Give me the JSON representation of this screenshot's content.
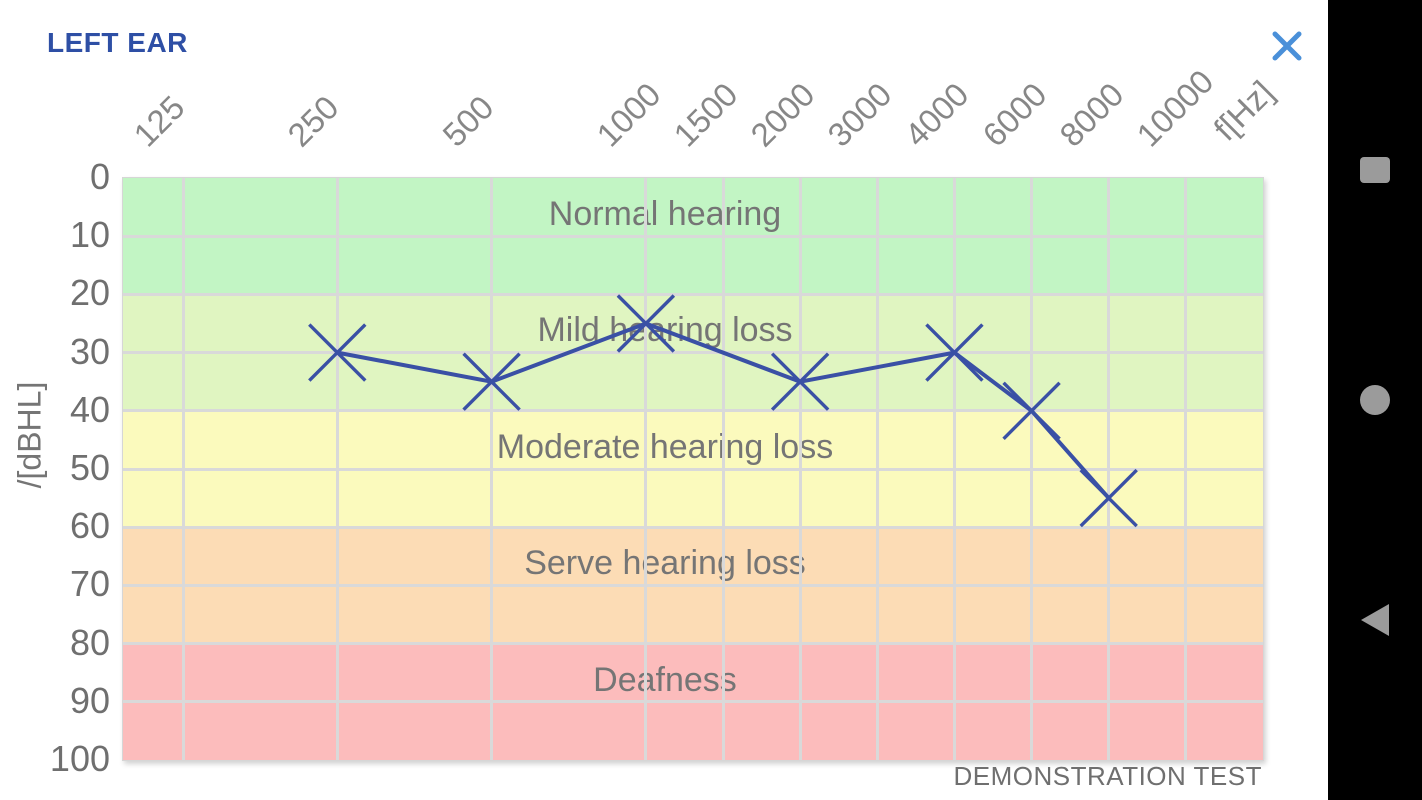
{
  "app": {
    "title": "LEFT EAR",
    "title_color": "#2e4fa5",
    "close_color": "#4a90d9"
  },
  "chart_data": {
    "type": "line",
    "title": "LEFT EAR",
    "x_axis_label": "f[Hz]",
    "y_axis_label": "/[dBHL]",
    "x_ticks": [
      "125",
      "250",
      "500",
      "1000",
      "1500",
      "2000",
      "3000",
      "4000",
      "6000",
      "8000",
      "10000"
    ],
    "y_ticks": [
      "0",
      "10",
      "20",
      "30",
      "40",
      "50",
      "60",
      "70",
      "80",
      "90",
      "100"
    ],
    "y_range": [
      0,
      100
    ],
    "y_axis_inverted_dbhl": true,
    "grid": true,
    "legend": "none",
    "series": [
      {
        "name": "left-ear-threshold",
        "color": "#3a50a5",
        "marker": "x",
        "points": [
          {
            "freq": 250,
            "db": 30
          },
          {
            "freq": 500,
            "db": 35
          },
          {
            "freq": 1000,
            "db": 25
          },
          {
            "freq": 2000,
            "db": 35
          },
          {
            "freq": 4000,
            "db": 30
          },
          {
            "freq": 6000,
            "db": 40
          },
          {
            "freq": 8000,
            "db": 55
          }
        ]
      }
    ],
    "bands": [
      {
        "label": "Normal hearing",
        "from": 0,
        "to": 20,
        "color": "#c2f5c4"
      },
      {
        "label": "Mild hearing loss",
        "from": 20,
        "to": 40,
        "color": "#e0f5c1"
      },
      {
        "label": "Moderate hearing loss",
        "from": 40,
        "to": 60,
        "color": "#fbfabd"
      },
      {
        "label": "Serve hearing loss",
        "from": 60,
        "to": 80,
        "color": "#fcdcb5"
      },
      {
        "label": "Deafness",
        "from": 80,
        "to": 100,
        "color": "#fcbcbc"
      }
    ],
    "grid_color": "#d9d9d9",
    "footer": "DEMONSTRATION TEST"
  },
  "nav_bar": {
    "background": "#000000",
    "icon_color": "#9b9b9b",
    "buttons": [
      {
        "name": "recents",
        "icon": "square-icon"
      },
      {
        "name": "home",
        "icon": "circle-icon"
      },
      {
        "name": "back",
        "icon": "triangle-left-icon"
      }
    ]
  }
}
